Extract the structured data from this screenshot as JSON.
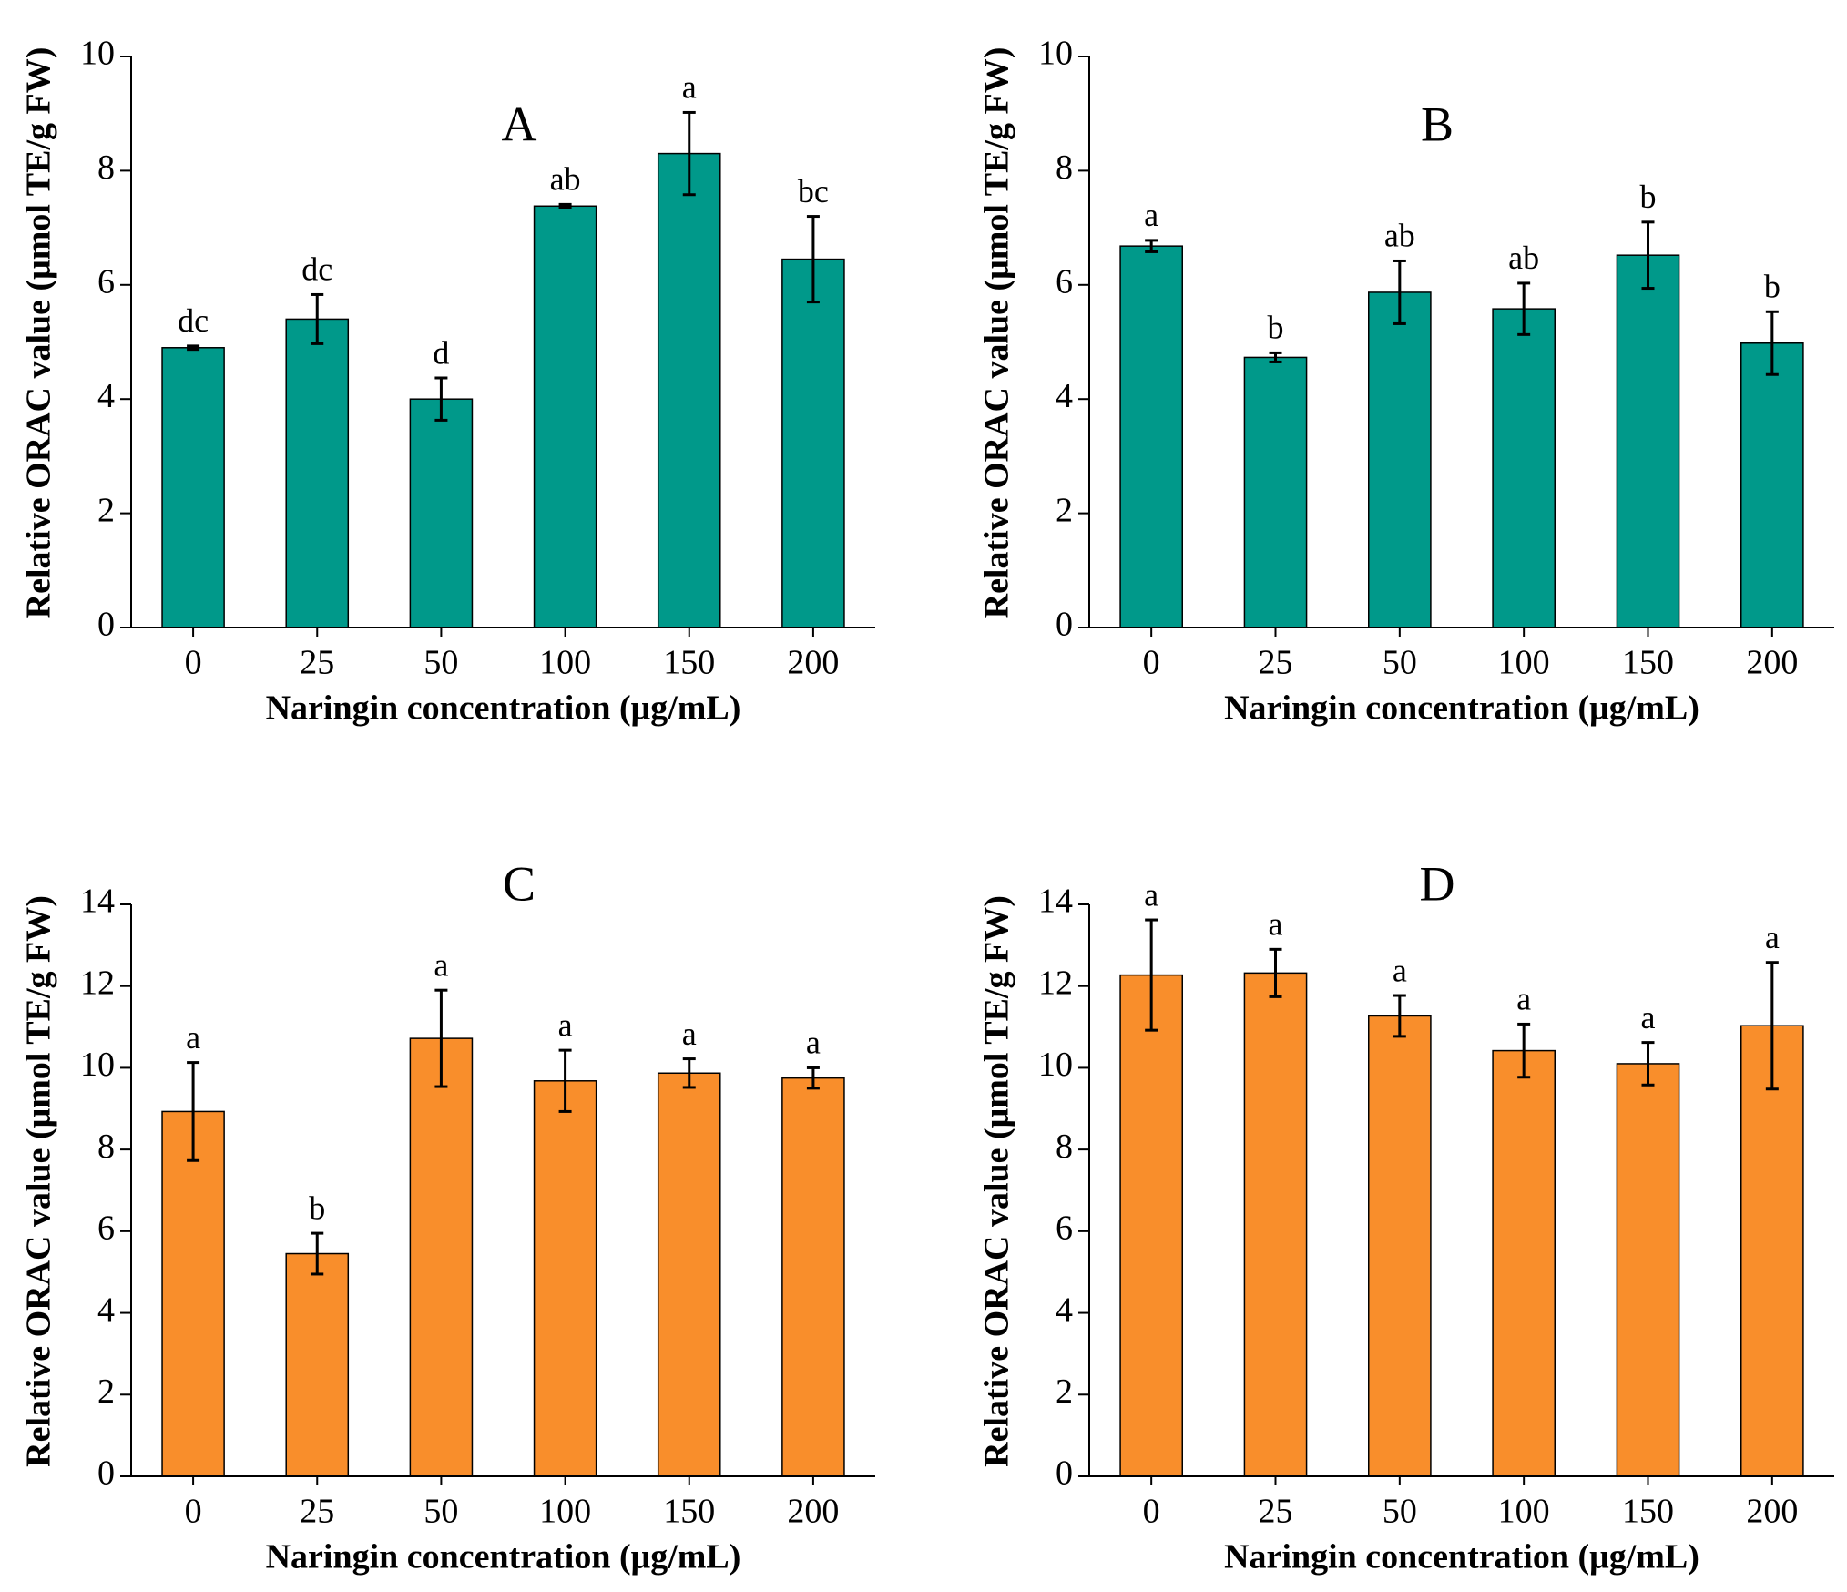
{
  "chart_data": [
    {
      "type": "bar",
      "title": "A",
      "xlabel": "Naringin concentration (μg/mL)",
      "ylabel": "Relative ORAC value (μmol TE/g FW)",
      "categories": [
        "0",
        "25",
        "50",
        "100",
        "150",
        "200"
      ],
      "values": [
        4.9,
        5.4,
        4.0,
        7.38,
        8.3,
        6.45
      ],
      "errors": [
        0.03,
        0.43,
        0.37,
        0.03,
        0.72,
        0.75
      ],
      "annotations": [
        "dc",
        "dc",
        "d",
        "ab",
        "a",
        "bc"
      ],
      "color": "#00998a",
      "ylim": [
        0,
        10
      ],
      "yticks": [
        0,
        2,
        4,
        6,
        8,
        10
      ]
    },
    {
      "type": "bar",
      "title": "B",
      "xlabel": "Naringin concentration (μg/mL)",
      "ylabel": "Relative ORAC value (μmol TE/g FW)",
      "categories": [
        "0",
        "25",
        "50",
        "100",
        "150",
        "200"
      ],
      "values": [
        6.68,
        4.73,
        5.87,
        5.58,
        6.52,
        4.98
      ],
      "errors": [
        0.1,
        0.08,
        0.55,
        0.45,
        0.58,
        0.55
      ],
      "annotations": [
        "a",
        "b",
        "ab",
        "ab",
        "b",
        "b"
      ],
      "color": "#00998a",
      "ylim": [
        0,
        10
      ],
      "yticks": [
        0,
        2,
        4,
        6,
        8,
        10
      ]
    },
    {
      "type": "bar",
      "title": "C",
      "xlabel": "Naringin concentration (μg/mL)",
      "ylabel": "Relative ORAC value (μmol TE/g FW)",
      "categories": [
        "0",
        "25",
        "50",
        "100",
        "150",
        "200"
      ],
      "values": [
        8.93,
        5.45,
        10.72,
        9.68,
        9.87,
        9.75
      ],
      "errors": [
        1.2,
        0.5,
        1.18,
        0.75,
        0.35,
        0.25
      ],
      "annotations": [
        "a",
        "b",
        "a",
        "a",
        "a",
        "a"
      ],
      "color": "#f98e2b",
      "ylim": [
        0,
        14
      ],
      "yticks": [
        0,
        2,
        4,
        6,
        8,
        10,
        12,
        14
      ]
    },
    {
      "type": "bar",
      "title": "D",
      "xlabel": "Naringin concentration (μg/mL)",
      "ylabel": "Relative ORAC value (μmol TE/g FW)",
      "categories": [
        "0",
        "25",
        "50",
        "100",
        "150",
        "200"
      ],
      "values": [
        12.27,
        12.32,
        11.27,
        10.42,
        10.1,
        11.03
      ],
      "errors": [
        1.35,
        0.58,
        0.5,
        0.65,
        0.52,
        1.55
      ],
      "annotations": [
        "a",
        "a",
        "a",
        "a",
        "a",
        "a"
      ],
      "color": "#f98e2b",
      "ylim": [
        0,
        14
      ],
      "yticks": [
        0,
        2,
        4,
        6,
        8,
        10,
        12,
        14
      ]
    }
  ]
}
